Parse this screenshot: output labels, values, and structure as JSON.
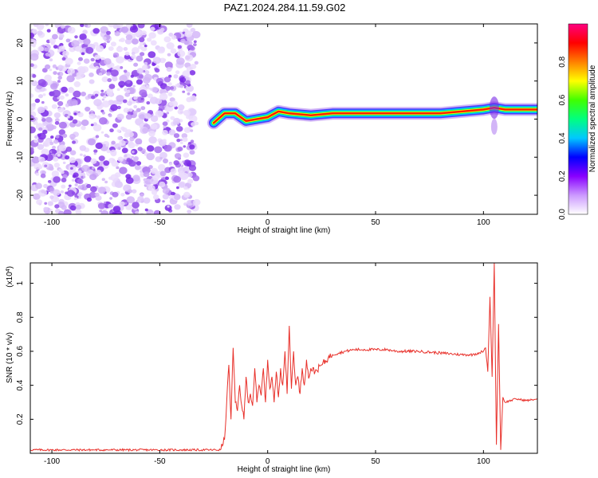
{
  "title": "PAZ1.2024.284.11.59.G02",
  "chart_data": [
    {
      "type": "heatmap",
      "xlabel": "Height of straight line (km)",
      "ylabel": "Frequency (Hz)",
      "xlim": [
        -110,
        125
      ],
      "ylim": [
        -25,
        25
      ],
      "x_ticks": [
        -100,
        -50,
        0,
        50,
        100
      ],
      "y_ticks": [
        -20,
        -10,
        0,
        10,
        20
      ],
      "tick_labels_x": [
        "-100",
        "-50",
        "0",
        "50",
        "100"
      ],
      "tick_labels_y": [
        "-20",
        "-10",
        "0",
        "10",
        "20"
      ],
      "noise_region_x": [
        -110,
        -35
      ],
      "ridge": {
        "x": [
          -25,
          -20,
          -15,
          -10,
          -5,
          0,
          5,
          10,
          20,
          30,
          40,
          50,
          60,
          70,
          80,
          90,
          100,
          105,
          110,
          125
        ],
        "y": [
          -1,
          1.5,
          1.5,
          -0.5,
          0,
          0.5,
          2,
          1.5,
          1,
          1.5,
          1.5,
          1.5,
          1.5,
          1.5,
          1.5,
          2,
          2.5,
          3,
          2.5,
          2.5
        ]
      },
      "colorbar": {
        "label": "Normalized spectral amplitude",
        "range": [
          0,
          1
        ],
        "ticks": [
          0.0,
          0.2,
          0.4,
          0.6,
          0.8
        ],
        "tick_labels": [
          "0.0",
          "0.2",
          "0.4",
          "0.6",
          "0.8"
        ],
        "colors": [
          "#ffffff",
          "#cc99ff",
          "#8800ff",
          "#0000ff",
          "#00c8ff",
          "#00ff80",
          "#40ff00",
          "#ffff00",
          "#ff8000",
          "#ff0000",
          "#ff0080"
        ]
      }
    },
    {
      "type": "line",
      "xlabel": "Height of straight line (km)",
      "ylabel": "SNR (10 * v/v)",
      "y_multiplier_label": "(x10",
      "y_multiplier_exp": "4",
      "xlim": [
        -110,
        125
      ],
      "ylim": [
        0,
        1.12
      ],
      "x_ticks": [
        -100,
        -50,
        0,
        50,
        100
      ],
      "y_ticks": [
        0.2,
        0.4,
        0.6,
        0.8,
        1.0
      ],
      "tick_labels_x": [
        "-100",
        "-50",
        "0",
        "50",
        "100"
      ],
      "tick_labels_y": [
        "0.2",
        "0.4",
        "0.6",
        "0.8",
        "1"
      ],
      "color": "#e8302a",
      "series": [
        {
          "x": [
            -110,
            -100,
            -80,
            -60,
            -40,
            -30,
            -22,
            -20,
            -19,
            -18,
            -17,
            -16,
            -15,
            -14,
            -13,
            -12,
            -11,
            -10,
            -9,
            -8,
            -7,
            -6,
            -5,
            -4,
            -3,
            -2,
            -1,
            0,
            1,
            2,
            3,
            4,
            5,
            6,
            7,
            8,
            9,
            10,
            11,
            12,
            13,
            14,
            15,
            16,
            17,
            18,
            19,
            20,
            22,
            25,
            28,
            30,
            33,
            36,
            40,
            45,
            50,
            55,
            60,
            70,
            80,
            90,
            95,
            100,
            101,
            102,
            103,
            104,
            105,
            106,
            107,
            108,
            109,
            110,
            115,
            120,
            125
          ],
          "y": [
            0.02,
            0.02,
            0.02,
            0.02,
            0.02,
            0.02,
            0.02,
            0.08,
            0.3,
            0.52,
            0.2,
            0.62,
            0.3,
            0.25,
            0.4,
            0.28,
            0.2,
            0.45,
            0.3,
            0.35,
            0.28,
            0.5,
            0.3,
            0.4,
            0.34,
            0.5,
            0.3,
            0.55,
            0.38,
            0.45,
            0.3,
            0.48,
            0.33,
            0.5,
            0.4,
            0.6,
            0.35,
            0.75,
            0.38,
            0.6,
            0.4,
            0.45,
            0.35,
            0.5,
            0.4,
            0.55,
            0.44,
            0.5,
            0.48,
            0.52,
            0.56,
            0.58,
            0.59,
            0.6,
            0.61,
            0.61,
            0.61,
            0.61,
            0.6,
            0.6,
            0.59,
            0.58,
            0.58,
            0.6,
            0.62,
            0.48,
            0.92,
            0.45,
            1.12,
            0.05,
            0.76,
            0.02,
            0.33,
            0.3,
            0.32,
            0.31,
            0.32
          ]
        }
      ]
    }
  ]
}
